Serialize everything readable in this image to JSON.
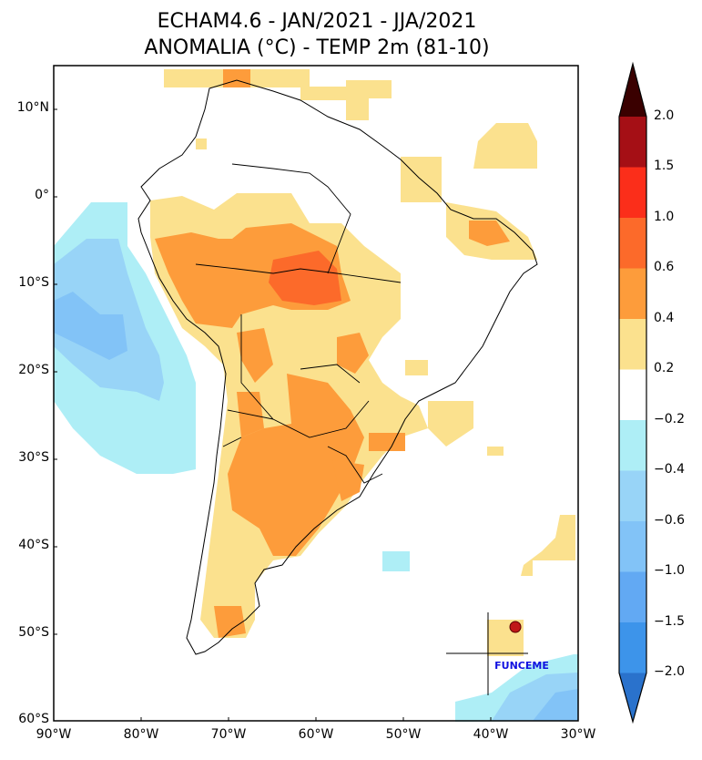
{
  "title": {
    "line1": "ECHAM4.6 - JAN/2021 - JJA/2021",
    "line2": "ANOMALIA (°C) - TEMP 2m (81-10)"
  },
  "map": {
    "lat_ticks": [
      "10°N",
      "0°",
      "10°S",
      "20°S",
      "30°S",
      "40°S",
      "50°S",
      "60°S"
    ],
    "lon_ticks": [
      "90°W",
      "80°W",
      "70°W",
      "60°W",
      "50°W",
      "40°W",
      "30°W"
    ],
    "lon_range": [
      -90,
      -30
    ],
    "lat_range": [
      -60,
      15
    ],
    "logo_text": "FUNCEME"
  },
  "colorbar": {
    "labels": [
      "2.0",
      "1.5",
      "1.0",
      "0.6",
      "0.4",
      "0.2",
      "−0.2",
      "−0.4",
      "−0.6",
      "−1.0",
      "−1.5",
      "−2.0"
    ],
    "colors": {
      "over": "#3a0000",
      "c_1_5_2_0": "#a50f15",
      "c_1_0_1_5": "#fb2e1a",
      "c_0_6_1_0": "#fc6a2a",
      "c_0_4_0_6": "#fd9c3b",
      "c_0_2_0_4": "#fbe18e",
      "c_neutral": "#ffffff",
      "c_m0_4_m0_2": "#aeeef6",
      "c_m0_6_m0_4": "#98d4f7",
      "c_m1_0_m0_6": "#82c3f7",
      "c_m1_5_m1_0": "#62a9f3",
      "c_m2_0_m1_5": "#3d94ea",
      "under": "#2a72cc"
    }
  }
}
